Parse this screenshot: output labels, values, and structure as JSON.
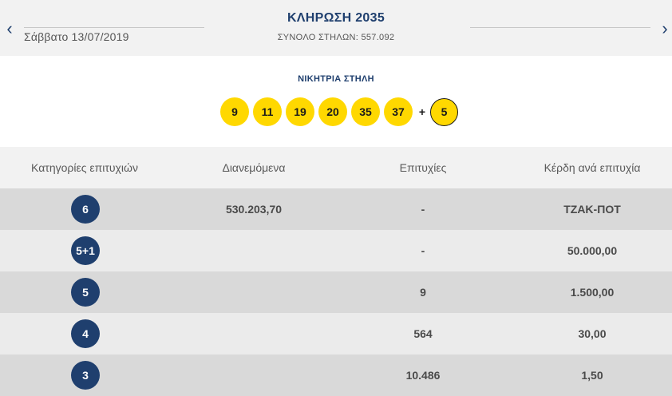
{
  "header": {
    "prev_arrow": "‹",
    "next_arrow": "›",
    "date": "Σάββατο 13/07/2019",
    "draw_title": "ΚΛΗΡΩΣΗ 2035",
    "total_columns": "ΣΥΝΟΛΟ ΣΤΗΛΩΝ: 557.092"
  },
  "winning": {
    "label": "ΝΙΚΗΤΡΙΑ ΣΤΗΛΗ",
    "numbers": [
      "9",
      "11",
      "19",
      "20",
      "35",
      "37"
    ],
    "plus": "+",
    "bonus": "5"
  },
  "table": {
    "headers": [
      "Κατηγορίες επιτυχιών",
      "Διανεμόμενα",
      "Επιτυχίες",
      "Κέρδη ανά επιτυχία"
    ],
    "rows": [
      {
        "category": "6",
        "distributed": "530.203,70",
        "winners": "-",
        "prize": "ΤΖΑΚ-ΠΟΤ"
      },
      {
        "category": "5+1",
        "distributed": "",
        "winners": "-",
        "prize": "50.000,00"
      },
      {
        "category": "5",
        "distributed": "",
        "winners": "9",
        "prize": "1.500,00"
      },
      {
        "category": "4",
        "distributed": "",
        "winners": "564",
        "prize": "30,00"
      },
      {
        "category": "3",
        "distributed": "",
        "winners": "10.486",
        "prize": "1,50"
      }
    ]
  },
  "colors": {
    "brand_blue": "#1f3f6e",
    "ball_yellow": "#ffd800"
  }
}
